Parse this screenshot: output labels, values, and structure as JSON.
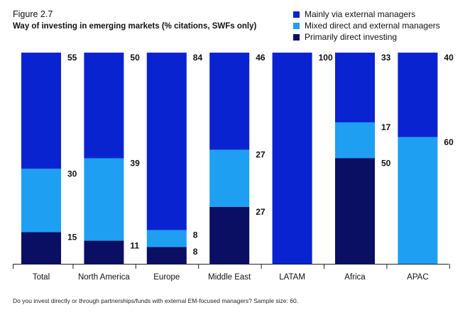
{
  "figure_label": "Figure 2.7",
  "footnote": "Do you invest directly or through partnerships/funds with external EM-focused managers? Sample size: 60.",
  "colors": {
    "external": "#0a23d0",
    "mixed": "#1e9ff2",
    "direct": "#0a0f64",
    "axis": "#222222"
  },
  "chart_data": {
    "type": "bar",
    "stacked": true,
    "title": "Way of investing in emerging markets (% citations, SWFs only)",
    "categories": [
      "Total",
      "North America",
      "Europe",
      "Middle East",
      "LATAM",
      "Africa",
      "APAC"
    ],
    "series": [
      {
        "name": "Primarily direct investing",
        "key": "direct",
        "values": [
          15,
          11,
          8,
          27,
          0,
          50,
          0
        ]
      },
      {
        "name": "Mixed direct and external managers",
        "key": "mixed",
        "values": [
          30,
          39,
          8,
          27,
          0,
          17,
          60
        ]
      },
      {
        "name": "Mainly via external managers",
        "key": "external",
        "values": [
          55,
          50,
          84,
          46,
          100,
          33,
          40
        ]
      }
    ],
    "legend": [
      "Mainly via external managers",
      "Mixed direct and external managers",
      "Primarily direct investing"
    ],
    "legend_position": "top-right",
    "ylim": [
      0,
      100
    ],
    "xlabel": "",
    "ylabel": ""
  }
}
